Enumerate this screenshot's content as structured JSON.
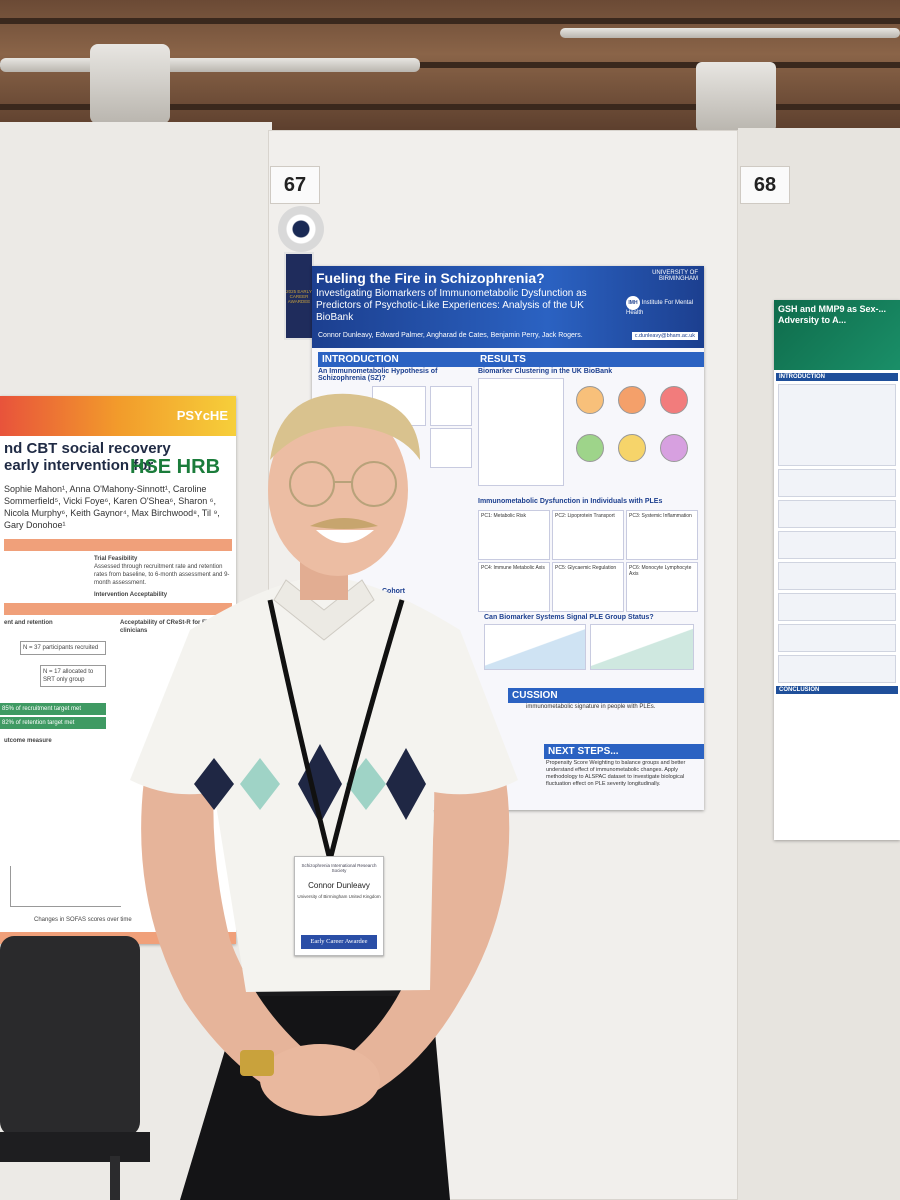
{
  "booths": {
    "left_number": "67",
    "right_number": "68"
  },
  "left_poster": {
    "logo": "PSYcHE",
    "logo_hse": "HSE HRB",
    "title_line1": "nd CBT social recovery",
    "title_line2": "early intervention for",
    "authors": "Sophie Mahon¹, Anna O'Mahony-Sinnott¹, Caroline Sommerfield⁵, Vicki Foye⁶, Karen O'Shea⁶, Sharon ⁶, Nicola Murphy⁶, Keith Gaynor⁴, Max Birchwood⁸, Til ⁹, Gary Donohoe¹",
    "section_feasibility": "Trial Feasibility",
    "feasibility_text": "Assessed through recruitment rate and retention rates from baseline, to 6-month assessment and 9-month assessment.",
    "section_acceptability": "Intervention Acceptability",
    "section_recruitment": "ent and retention",
    "section_clinicians": "Acceptability of CReSt-R for EIP clinicians",
    "recruitment_box": "N = 37 participants recruited",
    "allocated_box": "N = 17 allocated to SRT only group",
    "target_met": "85% of recruitment target met",
    "retention_met": "82% of retention target met",
    "outcome_heading": "utcome measure",
    "footer_note": "Changes in SOFAS scores over time"
  },
  "center_poster": {
    "title": "Fueling the Fire in Schizophrenia?",
    "subtitle": "Investigating Biomarkers of Immunometabolic Dysfunction as Predictors of Psychotic-Like Experiences: Analysis of the UK BioBank",
    "authors": "Connor Dunleavy, Edward Palmer, Angharad de Cates, Benjamin Perry, Jack Rogers.",
    "university": "UNIVERSITY OF BIRMINGHAM",
    "institute": "Institute For Mental Health",
    "institute_abbr": "IMH",
    "email": "c.dunleavy@bham.ac.uk",
    "section_intro": "INTRODUCTION",
    "intro_subhead": "An Immunometabolic Hypothesis of Schizophrenia (SZ)?",
    "section_results": "RESULTS",
    "results_subhead": "Biomarker Clustering in the UK BioBank",
    "results_subhead2": "Immunometabolic Dysfunction in Individuals with PLEs",
    "results_subhead3": "Can Biomarker Systems Signal PLE Group Status?",
    "pc_labels": [
      "PC1: Metabolic Risk",
      "PC2: Lipoprotein Transport",
      "PC3: Systemic Inflammation",
      "PC4: Immune Metabolic Axis",
      "PC5: Glycaemic Regulation",
      "PC6: Monocyte Lymphocyte Axis"
    ],
    "cohort_heading": "Cohort",
    "section_discussion": "CUSSION",
    "discussion_text": "immunometabolic signature in people with PLEs.",
    "section_next": "NEXT STEPS...",
    "next_text": "Propensity Score Weighting to balance groups and better understand effect of immunometabolic changes. Apply methodology to ALSPAC dataset to investigate biological fluctuation effect on PLE severity longitudinally."
  },
  "right_poster": {
    "title": "GSH and MMP9 as Sex-... Adversity to A...",
    "section_intro": "INTRODUCTION",
    "section_conclusion": "CONCLUSION"
  },
  "rosette": {
    "ribbon_text": "2025 EARLY CAREER AWARDEE"
  },
  "badge": {
    "org": "Schizophrenia International Research Society",
    "name": "Connor Dunleavy",
    "affiliation": "University of Birmingham United Kingdom",
    "ribbon": "Early Career Awardee"
  },
  "colors": {
    "poster_blue": "#2b62c2",
    "header_navy": "#1c3f8f",
    "shirt": "#f4f3ef",
    "argyle": "#1f2744"
  }
}
